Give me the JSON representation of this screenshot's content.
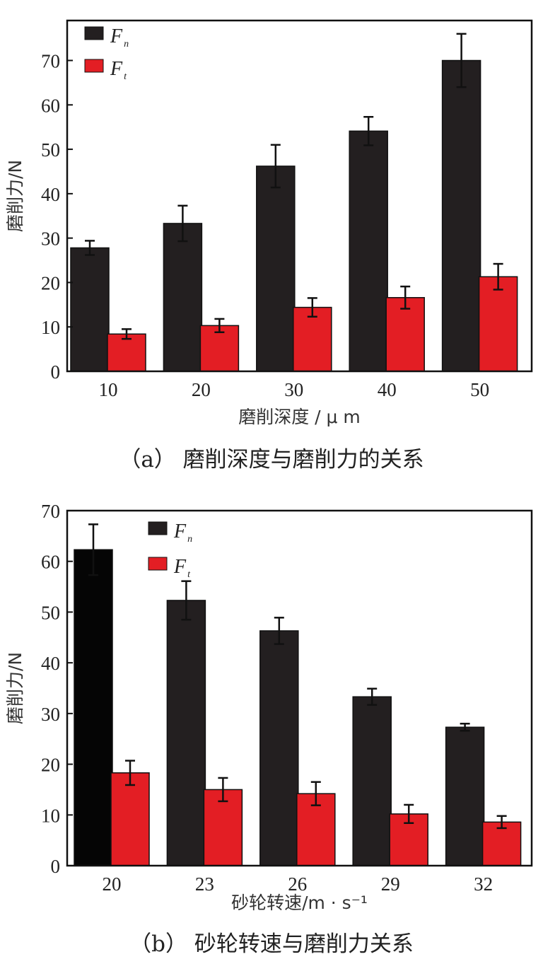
{
  "chart_data": [
    {
      "type": "bar",
      "ylabel": "磨削力/N",
      "xlabel": "磨削深度 / μ m",
      "caption": "（a） 磨削深度与磨削力的关系",
      "categories": [
        "10",
        "20",
        "30",
        "40",
        "50"
      ],
      "ylim": [
        0,
        79
      ],
      "yticks": [
        "0",
        "10",
        "20",
        "30",
        "40",
        "50",
        "60",
        "70"
      ],
      "legend_position": "top-left",
      "series": [
        {
          "name": "F",
          "sub": "n",
          "color": "#231f20",
          "values": [
            27.8,
            33.3,
            46.2,
            54.1,
            70.0
          ],
          "errors": [
            1.6,
            4.0,
            4.8,
            3.2,
            6.0
          ]
        },
        {
          "name": "F",
          "sub": "t",
          "color": "#e31e24",
          "values": [
            8.4,
            10.3,
            14.4,
            16.6,
            21.3
          ],
          "errors": [
            1.1,
            1.5,
            2.1,
            2.5,
            2.9
          ]
        }
      ]
    },
    {
      "type": "bar",
      "ylabel": "磨削力/N",
      "xlabel": "砂轮转速/m · s⁻¹",
      "caption": "（b） 砂轮转速与磨削力关系",
      "categories": [
        "20",
        "23",
        "26",
        "29",
        "32"
      ],
      "ylim": [
        0,
        70
      ],
      "yticks": [
        "0",
        "10",
        "20",
        "30",
        "40",
        "50",
        "60",
        "70"
      ],
      "legend_position": "top-center",
      "series": [
        {
          "name": "F",
          "sub": "n",
          "color": "#231f20",
          "values": [
            62.3,
            52.3,
            46.3,
            33.3,
            27.3
          ],
          "errors": [
            5.0,
            3.8,
            2.6,
            1.6,
            0.7
          ]
        },
        {
          "name": "F",
          "sub": "t",
          "color": "#e31e24",
          "values": [
            18.3,
            15.0,
            14.2,
            10.2,
            8.6
          ],
          "errors": [
            2.4,
            2.3,
            2.3,
            1.8,
            1.2
          ]
        }
      ]
    }
  ]
}
